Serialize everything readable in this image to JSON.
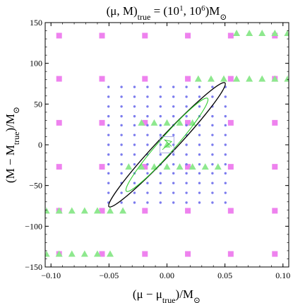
{
  "chart_data": {
    "type": "scatter",
    "title": "(μ, M)true = (10^1, 10^6)M⊙",
    "title_parts": {
      "prefix": "(μ, M)",
      "prefix_sub": "true",
      "eq": " = (10",
      "sup1": "1",
      "mid": ", 10",
      "sup2": "6",
      "close": ")M",
      "sun": "⊙"
    },
    "xlabel": "(μ − μtrue)/M⊙",
    "xlabel_parts": {
      "open": "(μ − μ",
      "sub": "true",
      "close": ")/M",
      "sun": "⊙"
    },
    "ylabel": "(M − Mtrue)/M⊙",
    "ylabel_parts": {
      "open": "(M − M",
      "sub": "true",
      "close": ")/M",
      "sun": "⊙"
    },
    "xlim": [
      -0.105,
      0.105
    ],
    "ylim": [
      -150,
      150
    ],
    "x_ticks": [
      -0.1,
      -0.05,
      0.0,
      0.05,
      0.1
    ],
    "x_tick_labels": [
      "−0.10",
      "−0.05",
      "0.00",
      "0.05",
      "0.10"
    ],
    "y_ticks": [
      -150,
      -100,
      -50,
      0,
      50,
      100,
      150
    ],
    "y_tick_labels": [
      "−150",
      "−100",
      "−50",
      "0",
      "50",
      "100",
      "150"
    ],
    "grid": false,
    "legend": "none",
    "colors": {
      "square": "#ee82ee",
      "triangle": "#8ee88e",
      "dot": "#7b7bee",
      "outer_ellipse": "#000000",
      "inner_ellipse": "#33cc33",
      "center_box": "#9999dd"
    },
    "series": [
      {
        "marker": "square",
        "points": [
          [
            -0.093,
            134
          ],
          [
            -0.056,
            134
          ],
          [
            -0.019,
            134
          ],
          [
            0.018,
            134
          ],
          [
            0.055,
            134
          ],
          [
            0.093,
            134
          ],
          [
            -0.093,
            81
          ],
          [
            -0.056,
            81
          ],
          [
            -0.019,
            81
          ],
          [
            0.018,
            81
          ],
          [
            0.055,
            81
          ],
          [
            0.093,
            81
          ],
          [
            -0.093,
            27
          ],
          [
            -0.056,
            27
          ],
          [
            -0.019,
            27
          ],
          [
            0.018,
            27
          ],
          [
            0.055,
            27
          ],
          [
            0.093,
            27
          ],
          [
            -0.093,
            -27
          ],
          [
            -0.056,
            -27
          ],
          [
            -0.019,
            -27
          ],
          [
            0.018,
            -27
          ],
          [
            0.055,
            -27
          ],
          [
            0.093,
            -27
          ],
          [
            -0.093,
            -81
          ],
          [
            -0.056,
            -81
          ],
          [
            -0.019,
            -81
          ],
          [
            0.018,
            -81
          ],
          [
            0.055,
            -81
          ],
          [
            0.093,
            -81
          ],
          [
            -0.093,
            -134
          ],
          [
            -0.056,
            -134
          ],
          [
            -0.019,
            -134
          ],
          [
            0.018,
            -134
          ],
          [
            0.055,
            -134
          ],
          [
            0.093,
            -134
          ]
        ]
      },
      {
        "marker": "triangle",
        "points": [
          [
            0.06,
            137
          ],
          [
            0.071,
            137
          ],
          [
            0.082,
            137
          ],
          [
            0.093,
            137
          ],
          [
            0.104,
            137
          ],
          [
            0.027,
            81
          ],
          [
            0.038,
            81
          ],
          [
            0.049,
            81
          ],
          [
            0.06,
            81
          ],
          [
            0.071,
            81
          ],
          [
            0.082,
            81
          ],
          [
            0.093,
            81
          ],
          [
            0.104,
            81
          ],
          [
            -0.022,
            27
          ],
          [
            -0.011,
            27
          ],
          [
            0.0,
            27
          ],
          [
            0.011,
            27
          ],
          [
            0.022,
            27
          ],
          [
            0.0,
            0
          ],
          [
            -0.033,
            -27
          ],
          [
            -0.022,
            -27
          ],
          [
            -0.011,
            -27
          ],
          [
            0.0,
            -27
          ],
          [
            0.011,
            -27
          ],
          [
            0.022,
            -27
          ],
          [
            0.033,
            -27
          ],
          [
            0.044,
            -27
          ],
          [
            -0.104,
            -81
          ],
          [
            -0.093,
            -81
          ],
          [
            -0.082,
            -81
          ],
          [
            -0.071,
            -81
          ],
          [
            -0.06,
            -81
          ],
          [
            -0.049,
            -81
          ],
          [
            -0.038,
            -81
          ],
          [
            -0.104,
            -134
          ],
          [
            -0.093,
            -134
          ],
          [
            -0.082,
            -134
          ],
          [
            -0.071,
            -134
          ],
          [
            -0.06,
            -134
          ],
          [
            -0.049,
            -134
          ]
        ]
      },
      {
        "marker": "dot",
        "grid_x": [
          -0.0504,
          -0.0392,
          -0.028,
          -0.0168,
          -0.0056,
          0.0056,
          0.0168,
          0.028,
          0.0392,
          0.0504
        ],
        "grid_y": [
          71,
          59,
          47,
          35,
          24,
          12,
          0,
          -12,
          -24,
          -35,
          -47,
          -59,
          -71
        ]
      }
    ],
    "annotations": [
      {
        "type": "ellipse",
        "center": [
          0.0,
          0.0
        ],
        "corner": [
          0.05,
          76
        ],
        "width_frac": 0.065,
        "style": "outer"
      },
      {
        "type": "ellipse",
        "center": [
          0.0,
          0.0
        ],
        "corner": [
          0.035,
          57
        ],
        "width_frac": 0.08,
        "style": "inner"
      },
      {
        "type": "box",
        "x_range": [
          -0.006,
          0.006
        ],
        "y_range": [
          -10,
          10
        ]
      }
    ]
  }
}
